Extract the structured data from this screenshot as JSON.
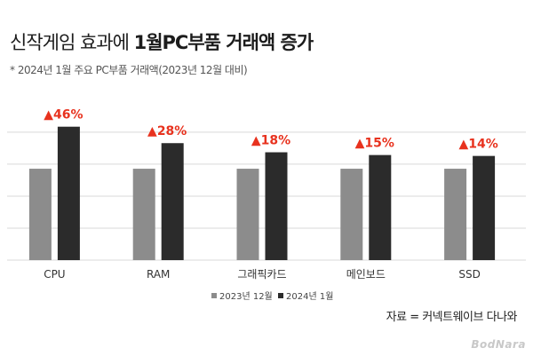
{
  "title_light": "신작게임 효과에 ",
  "title_bold": "1월PC부품 거래액 증가",
  "subtitle": "* 2024년 1월 주요 PC부품 거래액(2023년 12월 대비)",
  "source": "자료 = 커넥트웨이브 다나와",
  "logo": "BodNara",
  "colors": {
    "series_2023": "#8c8c8c",
    "series_2024": "#2b2b2b",
    "change": "#e8321e",
    "grid": "#d9d9d9"
  },
  "chart_data": {
    "type": "bar",
    "categories": [
      "CPU",
      "RAM",
      "그래픽카드",
      "메인보드",
      "SSD"
    ],
    "series": [
      {
        "name": "2023년 12월",
        "values": [
          100,
          100,
          100,
          100,
          100
        ]
      },
      {
        "name": "2024년 1월",
        "values": [
          146,
          128,
          118,
          115,
          114
        ]
      }
    ],
    "change_labels": [
      "▲46%",
      "▲28%",
      "▲18%",
      "▲15%",
      "▲14%"
    ],
    "ylim": [
      0,
      170
    ],
    "grid": true,
    "legend": "bottom-center"
  }
}
